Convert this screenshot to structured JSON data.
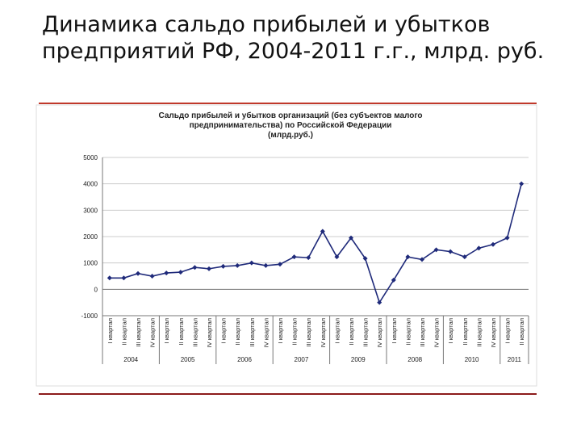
{
  "slide_title": "Динамика сальдо прибылей и убытков предприятий РФ, 2004-2011 г.г., млрд. руб.",
  "chart_data": {
    "type": "line",
    "title_lines": [
      "Сальдо прибылей и убытков организаций (без субъектов малого",
      "предпринимательства) по Российской Федерации",
      "(млрд.руб.)"
    ],
    "categories": [
      "I квартал",
      "II квартал",
      "III квартал",
      "IV квартал",
      "I квартал",
      "II квартал",
      "III квартал",
      "IV квартал",
      "I квартал",
      "II квартал",
      "III квартал",
      "IV квартал",
      "I квартал",
      "II квартал",
      "III квартал",
      "IV квартал",
      "I квартал",
      "II квартал",
      "III квартал",
      "IV квартал",
      "I квартал",
      "II квартал",
      "III квартал",
      "IV квартал",
      "I квартал",
      "II квартал",
      "III квартал",
      "IV квартал",
      "I квартал",
      "II квартал"
    ],
    "groups": [
      "2004",
      "2005",
      "2006",
      "2007",
      "2009",
      "2008",
      "2010",
      "2011"
    ],
    "series": [
      {
        "color": "#1f2a7a",
        "values": [
          430,
          430,
          600,
          500,
          620,
          650,
          830,
          780,
          870,
          900,
          1000,
          900,
          950,
          1230,
          1200,
          2200,
          1230,
          1950,
          1170,
          -500,
          350,
          1230,
          1130,
          1500,
          1430,
          1230,
          1560,
          1700,
          1950,
          4000
        ]
      }
    ],
    "ylim": [
      -1000,
      5000
    ],
    "yticks": [
      -1000,
      0,
      1000,
      2000,
      3000,
      4000,
      5000
    ],
    "grid": true
  }
}
